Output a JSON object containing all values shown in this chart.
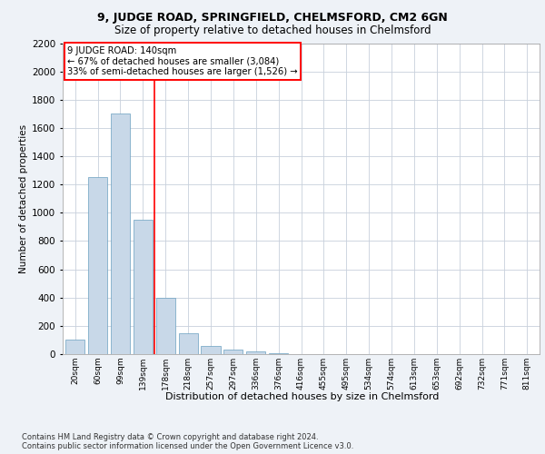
{
  "title1": "9, JUDGE ROAD, SPRINGFIELD, CHELMSFORD, CM2 6GN",
  "title2": "Size of property relative to detached houses in Chelmsford",
  "xlabel": "Distribution of detached houses by size in Chelmsford",
  "ylabel": "Number of detached properties",
  "footnote1": "Contains HM Land Registry data © Crown copyright and database right 2024.",
  "footnote2": "Contains public sector information licensed under the Open Government Licence v3.0.",
  "annotation_line1": "9 JUDGE ROAD: 140sqm",
  "annotation_line2": "← 67% of detached houses are smaller (3,084)",
  "annotation_line3": "33% of semi-detached houses are larger (1,526) →",
  "bin_labels": [
    "20sqm",
    "60sqm",
    "99sqm",
    "139sqm",
    "178sqm",
    "218sqm",
    "257sqm",
    "297sqm",
    "336sqm",
    "376sqm",
    "416sqm",
    "455sqm",
    "495sqm",
    "534sqm",
    "574sqm",
    "613sqm",
    "653sqm",
    "692sqm",
    "732sqm",
    "771sqm",
    "811sqm"
  ],
  "bar_values": [
    100,
    1250,
    1700,
    950,
    400,
    150,
    60,
    30,
    20,
    5,
    2,
    1,
    0,
    0,
    0,
    0,
    0,
    0,
    0,
    0,
    0
  ],
  "bar_color": "#c8d8e8",
  "bar_edge_color": "#6a9fc0",
  "red_line_x": 3.5,
  "ylim": [
    0,
    2200
  ],
  "yticks": [
    0,
    200,
    400,
    600,
    800,
    1000,
    1200,
    1400,
    1600,
    1800,
    2000,
    2200
  ],
  "background_color": "#eef2f7",
  "plot_background": "#ffffff",
  "grid_color": "#c8d0dc"
}
